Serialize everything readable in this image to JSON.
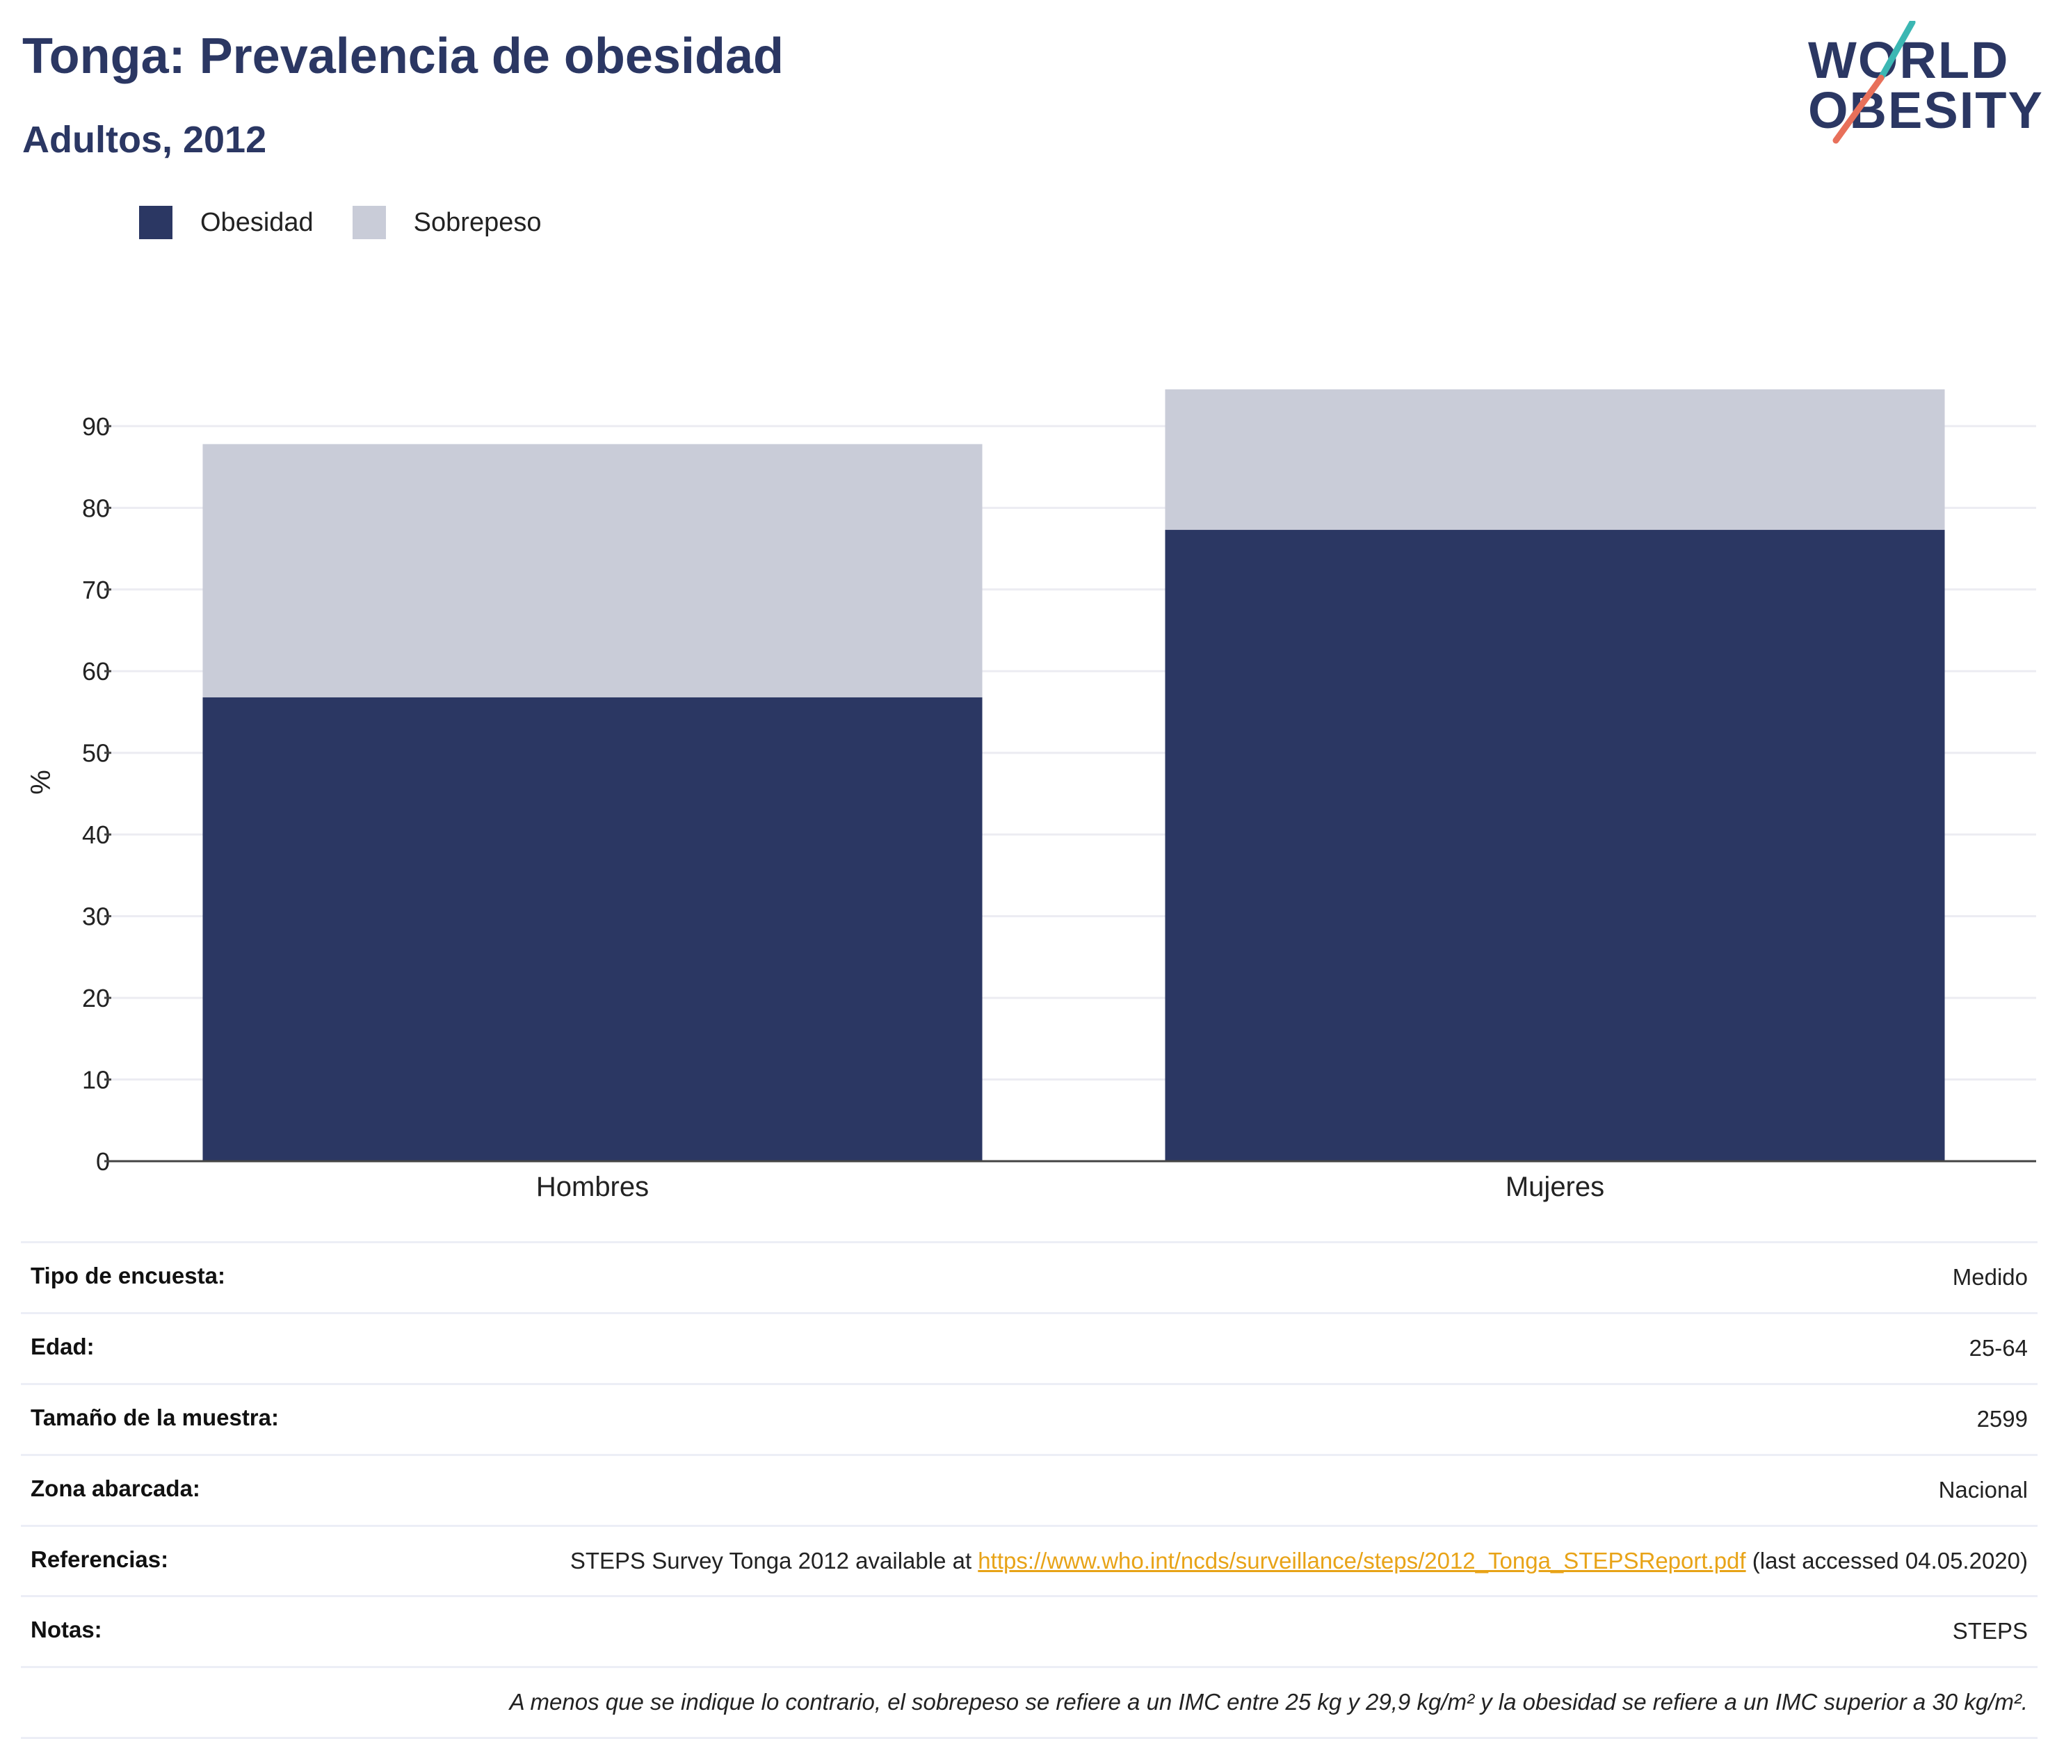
{
  "header": {
    "title": "Tonga: Prevalencia de obesidad",
    "subtitle": "Adultos, 2012"
  },
  "logo": {
    "line1": "WORLD",
    "line2": "OBESITY",
    "accent_teal": "#3bb7b3",
    "accent_coral": "#e8705a"
  },
  "legend": [
    {
      "label": "Obesidad",
      "color": "#2b3763"
    },
    {
      "label": "Sobrepeso",
      "color": "#c9ccd8"
    }
  ],
  "chart_data": {
    "type": "bar",
    "stacked": true,
    "categories": [
      "Hombres",
      "Mujeres"
    ],
    "series": [
      {
        "name": "Obesidad",
        "color": "#2b3763",
        "values": [
          56.8,
          77.3
        ]
      },
      {
        "name": "Sobrepeso",
        "color": "#c9ccd8",
        "values": [
          31.0,
          17.2
        ]
      }
    ],
    "ylabel": "%",
    "ylim": [
      0,
      94.5
    ],
    "yticks": [
      0,
      10,
      20,
      30,
      40,
      50,
      60,
      70,
      80,
      90
    ],
    "grid": true,
    "legend_position": "top-left"
  },
  "info": {
    "rows": [
      {
        "label": "Tipo de encuesta:",
        "value": "Medido"
      },
      {
        "label": "Edad:",
        "value": "25-64"
      },
      {
        "label": "Tamaño de la muestra:",
        "value": "2599"
      },
      {
        "label": "Zona abarcada:",
        "value": "Nacional"
      }
    ],
    "references": {
      "label": "Referencias:",
      "prefix": "STEPS Survey Tonga 2012 available at ",
      "url": "https://www.who.int/ncds/surveillance/steps/2012_Tonga_STEPSReport.pdf",
      "suffix": " (last accessed 04.05.2020)"
    },
    "notes": {
      "label": "Notas:",
      "value": "STEPS"
    },
    "footnote": "A menos que se indique lo contrario, el sobrepeso se refiere a un IMC entre 25 kg y 29,9 kg/m² y la obesidad se refiere a un IMC superior a 30 kg/m²."
  }
}
